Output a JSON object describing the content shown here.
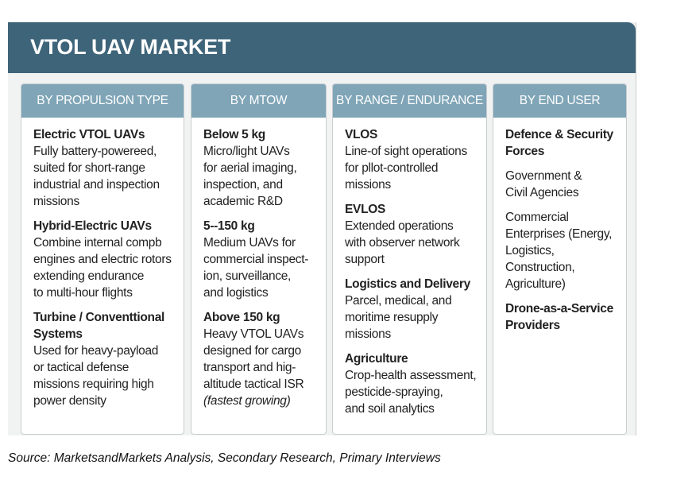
{
  "title": "VTOL UAV MARKET",
  "columns": [
    {
      "header": "BY PROPULSION TYPE",
      "items": [
        {
          "heading": [
            "Electric VTOL UAVs"
          ],
          "text": [
            "Fully battery-powereed,",
            "suited for short-range",
            "industrial and inspection",
            "missions"
          ]
        },
        {
          "heading": [
            "Hybrid-Electric UAVs"
          ],
          "text": [
            "Combine internal compb",
            "engines and electric rotors",
            "extending endurance",
            "to multi-hour flights"
          ]
        },
        {
          "heading": [
            "Turbine / Conventtional",
            "Systems"
          ],
          "text": [
            "Used for heavy-payload",
            "or tactical defense",
            "missions requiring high",
            "power density"
          ]
        }
      ]
    },
    {
      "header": "BY MTOW",
      "items": [
        {
          "heading": [
            "Below 5 kg"
          ],
          "text": [
            "Micro/light UAVs",
            "for aerial imaging,",
            "inspection, and",
            "academic R&D"
          ]
        },
        {
          "heading": [
            "5--150 kg"
          ],
          "text": [
            "Medium UAVs for",
            "commercial inspect-",
            "ion, surveillance,",
            "and logistics"
          ]
        },
        {
          "heading": [
            "Above 150 kg"
          ],
          "text": [
            "Heavy VTOL UAVs",
            "designed for cargo",
            "transport and hig-",
            "altitude tactical ISR"
          ],
          "note": "(fastest growing)"
        }
      ]
    },
    {
      "header": "BY RANGE / ENDURANCE",
      "items": [
        {
          "heading": [
            "VLOS"
          ],
          "text": [
            "Line-of sight operations",
            "for pllot-controlled",
            "missions"
          ]
        },
        {
          "heading": [
            "EVLOS"
          ],
          "text": [
            "Extended operations",
            "with observer network",
            "support"
          ]
        },
        {
          "heading": [
            "Logistics and Delivery"
          ],
          "text": [
            "Parcel, medical, and",
            "moritime resupply",
            "missions"
          ]
        },
        {
          "heading": [
            "Agriculture"
          ],
          "text": [
            "Crop-health assessment,",
            "pesticide-spraying,",
            "and soil analytics"
          ]
        }
      ]
    },
    {
      "header": "BY END USER",
      "items": [
        {
          "heading": [
            "Defence & Security",
            "Forces"
          ]
        },
        {
          "text": [
            "Government &",
            "Civil Agencies"
          ]
        },
        {
          "text": [
            "Commercial",
            "Enterprises (Energy,",
            "Logistics,",
            "Construction,",
            "Agriculture)"
          ]
        },
        {
          "heading": [
            "Drone-as-a-Service",
            "Providers"
          ]
        }
      ]
    }
  ],
  "source": "Source: MarketsandMarkets Analysis, Secondary Research, Primary Interviews"
}
